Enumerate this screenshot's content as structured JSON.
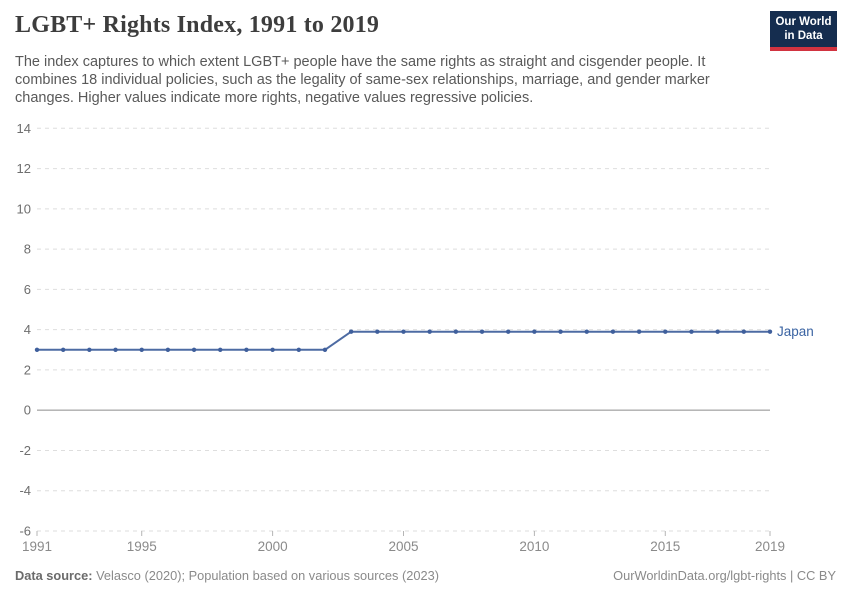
{
  "header": {
    "title": "LGBT+ Rights Index, 1991 to 2019",
    "subtitle": "The index captures to which extent LGBT+ people have the same rights as straight and cisgender people. It combines 18 individual policies, such as the legality of same-sex relationships, marriage, and gender marker changes. Higher values indicate more rights, negative values regressive policies.",
    "logo": {
      "line1": "Our World",
      "line2": "in Data"
    }
  },
  "footer": {
    "data_source_label": "Data source:",
    "data_source_text": " Velasco (2020); Population based on various sources (2023)",
    "credit": "OurWorldinData.org/lgbt-rights | CC BY"
  },
  "colors": {
    "line": "#4d6ba3",
    "marker": "#3f5f9c",
    "series_label": "#3a63a2",
    "grid": "#dedede",
    "zero_line": "#ababab",
    "tick": "#b5b5b5",
    "y_label": "#6e6e6e",
    "x_label": "#8a8a8a",
    "logo_bg": "#152d4f",
    "logo_accent": "#d13340"
  },
  "chart_data": {
    "type": "line",
    "title": "LGBT+ Rights Index, 1991 to 2019",
    "xlabel": "",
    "ylabel": "",
    "xlim": [
      1991,
      2019
    ],
    "ylim": [
      -6,
      14
    ],
    "xticks": [
      1991,
      1995,
      2000,
      2005,
      2010,
      2015,
      2019
    ],
    "yticks": [
      14,
      12,
      10,
      8,
      6,
      4,
      2,
      0,
      -2,
      -4,
      -6
    ],
    "grid": "horizontal-dashed",
    "legend_position": "end-of-line-label",
    "series": [
      {
        "name": "Japan",
        "x": [
          1991,
          1992,
          1993,
          1994,
          1995,
          1996,
          1997,
          1998,
          1999,
          2000,
          2001,
          2002,
          2003,
          2004,
          2005,
          2006,
          2007,
          2008,
          2009,
          2010,
          2011,
          2012,
          2013,
          2014,
          2015,
          2016,
          2017,
          2018,
          2019
        ],
        "values": [
          3.0,
          3.0,
          3.0,
          3.0,
          3.0,
          3.0,
          3.0,
          3.0,
          3.0,
          3.0,
          3.0,
          3.0,
          3.9,
          3.9,
          3.9,
          3.9,
          3.9,
          3.9,
          3.9,
          3.9,
          3.9,
          3.9,
          3.9,
          3.9,
          3.9,
          3.9,
          3.9,
          3.9,
          3.9
        ]
      }
    ]
  }
}
